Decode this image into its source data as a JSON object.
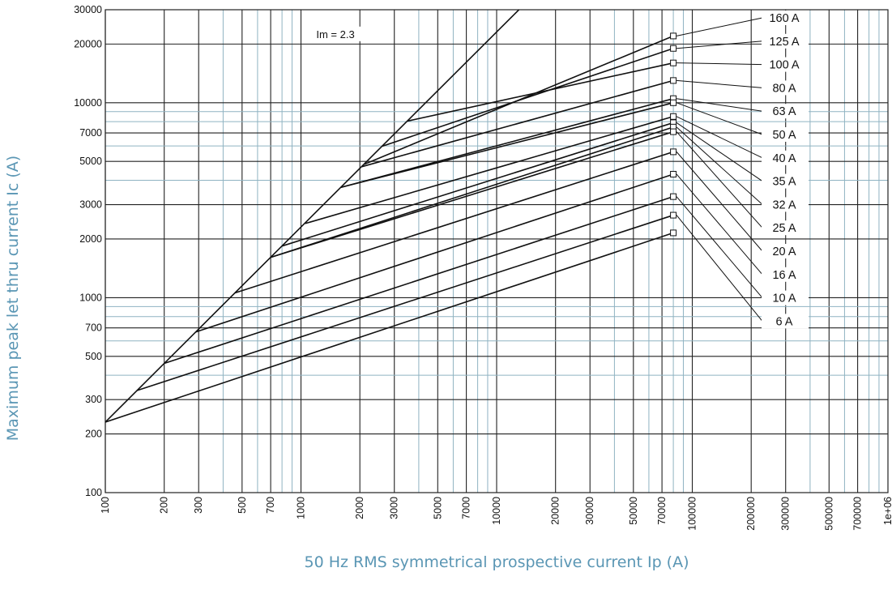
{
  "chart_data": {
    "type": "line",
    "title": "",
    "xlabel": "50 Hz RMS symmetrical prospective current Ip (A)",
    "ylabel": "Maximum peak let thru current Ic (A)",
    "x_scale": "log",
    "y_scale": "log",
    "xlim": [
      100,
      1000000
    ],
    "ylim": [
      100,
      30000
    ],
    "x_ticks": [
      "100",
      "200",
      "300",
      "500",
      "700",
      "1000",
      "2000",
      "3000",
      "5000",
      "7000",
      "10000",
      "20000",
      "30000",
      "50000",
      "70000",
      "100000",
      "200000",
      "300000",
      "500000",
      "700000",
      "1e+06"
    ],
    "y_ticks": [
      "100",
      "200",
      "300",
      "500",
      "700",
      "1000",
      "2000",
      "3000",
      "5000",
      "7000",
      "10000",
      "20000",
      "30000"
    ],
    "grid": true,
    "annotation": "Im = 2.3",
    "cutoff_line": {
      "x": [
        100,
        13000
      ],
      "y": [
        230,
        30000
      ]
    },
    "series": [
      {
        "name": "160 A",
        "x": [
          2100,
          80000
        ],
        "y": [
          4830,
          22000
        ]
      },
      {
        "name": "125 A",
        "x": [
          2600,
          80000
        ],
        "y": [
          5980,
          19000
        ]
      },
      {
        "name": "100 A",
        "x": [
          3500,
          80000
        ],
        "y": [
          8050,
          16000
        ]
      },
      {
        "name": "80 A",
        "x": [
          2050,
          80000
        ],
        "y": [
          4700,
          13000
        ]
      },
      {
        "name": "63 A",
        "x": [
          1600,
          80000
        ],
        "y": [
          3680,
          10500
        ]
      },
      {
        "name": "50 A",
        "x": [
          1600,
          80000
        ],
        "y": [
          3680,
          10000
        ]
      },
      {
        "name": "40 A",
        "x": [
          1050,
          80000
        ],
        "y": [
          2400,
          8500
        ]
      },
      {
        "name": "35 A",
        "x": [
          800,
          80000
        ],
        "y": [
          1840,
          7900
        ]
      },
      {
        "name": "32 A",
        "x": [
          700,
          80000
        ],
        "y": [
          1610,
          7500
        ]
      },
      {
        "name": "25 A",
        "x": [
          700,
          80000
        ],
        "y": [
          1610,
          7100
        ]
      },
      {
        "name": "20 A",
        "x": [
          460,
          80000
        ],
        "y": [
          1058,
          5600
        ]
      },
      {
        "name": "16 A",
        "x": [
          290,
          80000
        ],
        "y": [
          667,
          4300
        ]
      },
      {
        "name": "10 A",
        "x": [
          200,
          80000
        ],
        "y": [
          460,
          3300
        ]
      },
      {
        "name": "6 A",
        "x": [
          145,
          80000
        ],
        "y": [
          334,
          2650
        ]
      },
      {
        "name": "",
        "x": [
          100,
          80000
        ],
        "y": [
          230,
          2150
        ]
      }
    ],
    "label_order": [
      "160 A",
      "125 A",
      "100 A",
      "80 A",
      "63 A",
      "50 A",
      "40 A",
      "35 A",
      "32 A",
      "25 A",
      "20 A",
      "16 A",
      "10 A",
      "6 A"
    ]
  }
}
